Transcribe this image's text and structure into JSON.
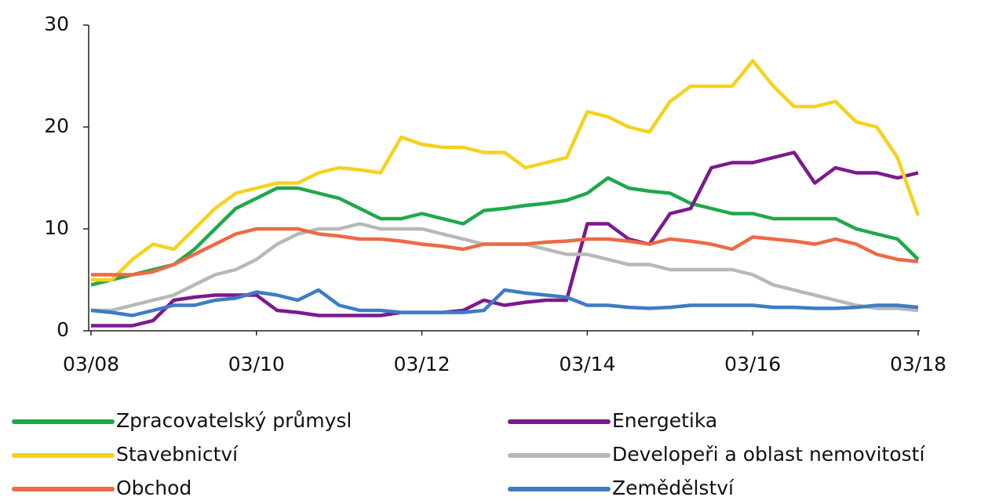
{
  "chart_data": {
    "type": "line",
    "categories": [
      "03/08",
      null,
      null,
      null,
      null,
      null,
      null,
      null,
      "03/10",
      null,
      null,
      null,
      null,
      null,
      null,
      null,
      "03/12",
      null,
      null,
      null,
      null,
      null,
      null,
      null,
      "03/14",
      null,
      null,
      null,
      null,
      null,
      null,
      null,
      "03/16",
      null,
      null,
      null,
      null,
      null,
      null,
      null,
      "03/18"
    ],
    "ylim": [
      0,
      30
    ],
    "yticks": [
      0,
      10,
      20,
      30
    ],
    "series": [
      {
        "name": "Zpracovatelský průmysl",
        "color": "#1fa84a",
        "values": [
          4.5,
          5,
          5.5,
          6,
          6.5,
          8,
          10,
          12,
          13,
          14,
          14,
          13.5,
          13,
          12,
          11,
          11,
          11.5,
          11,
          10.5,
          11.8,
          12,
          12.3,
          12.5,
          12.8,
          13.5,
          15,
          14,
          13.7,
          13.5,
          12.5,
          12,
          11.5,
          11.5,
          11,
          11,
          11,
          11,
          10,
          9.5,
          9,
          7
        ]
      },
      {
        "name": "Energetika",
        "color": "#7b1a8c",
        "values": [
          0.5,
          0.5,
          0.5,
          1,
          3,
          3.3,
          3.5,
          3.5,
          3.5,
          2,
          1.8,
          1.5,
          1.5,
          1.5,
          1.5,
          1.8,
          1.8,
          1.8,
          2,
          3,
          2.5,
          2.8,
          3,
          3,
          10.5,
          10.5,
          9,
          8.5,
          11.5,
          12,
          16,
          16.5,
          16.5,
          17,
          17.5,
          14.5,
          16,
          15.5,
          15.5,
          15,
          15.5
        ]
      },
      {
        "name": "Stavebnictví",
        "color": "#f5d21c",
        "values": [
          5,
          5,
          7,
          8.5,
          8,
          10,
          12,
          13.5,
          14,
          14.5,
          14.5,
          15.5,
          16,
          15.8,
          15.5,
          19,
          18.3,
          18,
          18,
          17.5,
          17.5,
          16,
          16.5,
          17,
          21.5,
          21,
          20,
          19.5,
          22.5,
          24,
          24,
          24,
          26.5,
          24,
          22,
          22,
          22.5,
          20.5,
          20,
          17,
          11.3
        ]
      },
      {
        "name": "Developeři a oblast nemovitostí",
        "color": "#b8b8b8",
        "values": [
          2,
          2,
          2.5,
          3,
          3.5,
          4.5,
          5.5,
          6,
          7,
          8.5,
          9.5,
          10,
          10,
          10.5,
          10,
          10,
          10,
          9.5,
          9,
          8.5,
          8.5,
          8.5,
          8,
          7.5,
          7.5,
          7,
          6.5,
          6.5,
          6,
          6,
          6,
          6,
          5.5,
          4.5,
          4,
          3.5,
          3,
          2.5,
          2.2,
          2.2,
          2
        ]
      },
      {
        "name": "Obchod",
        "color": "#ec6a45",
        "values": [
          5.5,
          5.5,
          5.5,
          5.8,
          6.5,
          7.5,
          8.5,
          9.5,
          10,
          10,
          10,
          9.5,
          9.3,
          9,
          9,
          8.8,
          8.5,
          8.3,
          8,
          8.5,
          8.5,
          8.5,
          8.7,
          8.8,
          9,
          9,
          8.8,
          8.5,
          9,
          8.8,
          8.5,
          8,
          9.2,
          9,
          8.8,
          8.5,
          9,
          8.5,
          7.5,
          7,
          6.8
        ]
      },
      {
        "name": "Zemědělství",
        "color": "#3e7cc4",
        "values": [
          2,
          1.8,
          1.5,
          2,
          2.5,
          2.5,
          3,
          3.2,
          3.8,
          3.5,
          3,
          4,
          2.5,
          2,
          2,
          1.8,
          1.8,
          1.8,
          1.8,
          2,
          4,
          3.7,
          3.5,
          3.3,
          2.5,
          2.5,
          2.3,
          2.2,
          2.3,
          2.5,
          2.5,
          2.5,
          2.5,
          2.3,
          2.3,
          2.2,
          2.2,
          2.3,
          2.5,
          2.5,
          2.3
        ]
      }
    ]
  }
}
